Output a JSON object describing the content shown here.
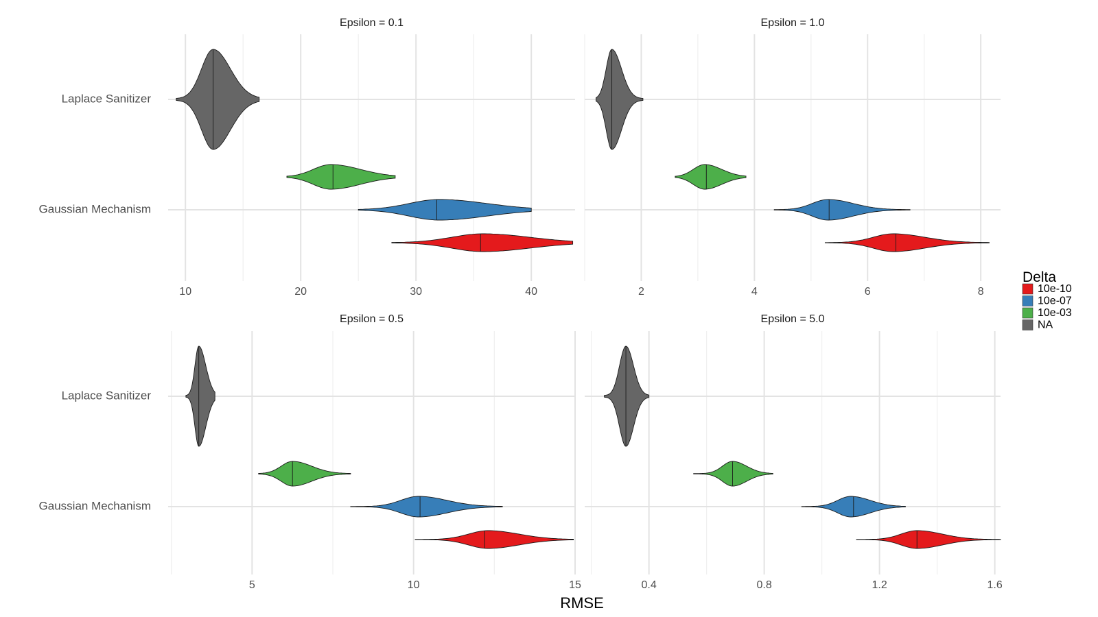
{
  "chart_data": {
    "type": "violin",
    "xlabel": "RMSE",
    "categories": [
      "Laplace Sanitizer",
      "Gaussian Mechanism"
    ],
    "legend": {
      "title": "Delta",
      "position": "right",
      "entries": [
        {
          "label": "10e-10",
          "color": "#E41A1C"
        },
        {
          "label": "10e-07",
          "color": "#377EB8"
        },
        {
          "label": "10e-03",
          "color": "#4DAF4A"
        },
        {
          "label": "NA",
          "color": "#666666"
        }
      ]
    },
    "grid": true,
    "panels": [
      {
        "title": "Epsilon = 0.1",
        "xlim": [
          8.5,
          43.8
        ],
        "xticks": [
          10,
          20,
          30,
          40
        ],
        "xtick_labels": [
          "10",
          "20",
          "30",
          "40"
        ],
        "xminor": [
          15,
          25,
          35
        ],
        "series": [
          {
            "category": "Laplace Sanitizer",
            "delta": "NA",
            "min": 9.2,
            "max": 16.4,
            "median": 12.4,
            "peak": 12.4,
            "spread": 1.0,
            "skew": 1.5
          },
          {
            "category": "Gaussian Mechanism",
            "delta": "10e-03",
            "min": 18.8,
            "max": 28.2,
            "median": 22.8,
            "peak": 22.6,
            "spread": 1.5,
            "skew": 1.7
          },
          {
            "category": "Gaussian Mechanism",
            "delta": "10e-07",
            "min": 25.0,
            "max": 40.0,
            "median": 31.8,
            "peak": 32.0,
            "spread": 2.6,
            "skew": 1.6
          },
          {
            "category": "Gaussian Mechanism",
            "delta": "10e-10",
            "min": 27.9,
            "max": 43.6,
            "median": 35.6,
            "peak": 35.8,
            "spread": 2.7,
            "skew": 1.5
          }
        ]
      },
      {
        "title": "Epsilon = 1.0",
        "xlim": [
          1.0,
          8.35
        ],
        "xticks": [
          2,
          4,
          6,
          8
        ],
        "xtick_labels": [
          "2",
          "4",
          "6",
          "8"
        ],
        "xminor": [
          1,
          3,
          5,
          7
        ],
        "series": [
          {
            "category": "Laplace Sanitizer",
            "delta": "NA",
            "min": 1.2,
            "max": 2.03,
            "median": 1.48,
            "peak": 1.48,
            "spread": 0.1,
            "skew": 1.7
          },
          {
            "category": "Gaussian Mechanism",
            "delta": "10e-03",
            "min": 2.6,
            "max": 3.85,
            "median": 3.15,
            "peak": 3.12,
            "spread": 0.2,
            "skew": 1.5
          },
          {
            "category": "Gaussian Mechanism",
            "delta": "10e-07",
            "min": 4.35,
            "max": 6.75,
            "median": 5.32,
            "peak": 5.3,
            "spread": 0.28,
            "skew": 1.6
          },
          {
            "category": "Gaussian Mechanism",
            "delta": "10e-10",
            "min": 5.25,
            "max": 8.15,
            "median": 6.5,
            "peak": 6.45,
            "spread": 0.35,
            "skew": 1.6
          }
        ]
      },
      {
        "title": "Epsilon = 0.5",
        "xlim": [
          2.4,
          15.0
        ],
        "xticks": [
          5,
          10,
          15
        ],
        "xtick_labels": [
          "5",
          "10",
          "15"
        ],
        "xminor": [
          2.5,
          7.5,
          12.5
        ],
        "series": [
          {
            "category": "Laplace Sanitizer",
            "delta": "NA",
            "min": 2.95,
            "max": 3.85,
            "median": 3.35,
            "peak": 3.35,
            "spread": 0.12,
            "skew": 1.8
          },
          {
            "category": "Gaussian Mechanism",
            "delta": "10e-03",
            "min": 5.2,
            "max": 8.05,
            "median": 6.25,
            "peak": 6.25,
            "spread": 0.35,
            "skew": 1.7
          },
          {
            "category": "Gaussian Mechanism",
            "delta": "10e-07",
            "min": 8.05,
            "max": 12.75,
            "median": 10.2,
            "peak": 10.15,
            "spread": 0.55,
            "skew": 1.6
          },
          {
            "category": "Gaussian Mechanism",
            "delta": "10e-10",
            "min": 10.05,
            "max": 14.95,
            "median": 12.2,
            "peak": 12.3,
            "spread": 0.6,
            "skew": 1.6
          }
        ]
      },
      {
        "title": "Epsilon = 5.0",
        "xlim": [
          0.177,
          1.62
        ],
        "xticks": [
          0.4,
          0.8,
          1.2,
          1.6
        ],
        "xtick_labels": [
          "0.4",
          "0.8",
          "1.2",
          "1.6"
        ],
        "xminor": [
          0.2,
          0.6,
          1.0,
          1.4
        ],
        "series": [
          {
            "category": "Laplace Sanitizer",
            "delta": "NA",
            "min": 0.245,
            "max": 0.4,
            "median": 0.32,
            "peak": 0.32,
            "spread": 0.022,
            "skew": 1.2
          },
          {
            "category": "Gaussian Mechanism",
            "delta": "10e-03",
            "min": 0.555,
            "max": 0.83,
            "median": 0.69,
            "peak": 0.69,
            "spread": 0.035,
            "skew": 1.4
          },
          {
            "category": "Gaussian Mechanism",
            "delta": "10e-07",
            "min": 0.93,
            "max": 1.29,
            "median": 1.11,
            "peak": 1.1,
            "spread": 0.045,
            "skew": 1.5
          },
          {
            "category": "Gaussian Mechanism",
            "delta": "10e-10",
            "min": 1.12,
            "max": 1.62,
            "median": 1.33,
            "peak": 1.33,
            "spread": 0.055,
            "skew": 1.6
          }
        ]
      }
    ]
  }
}
